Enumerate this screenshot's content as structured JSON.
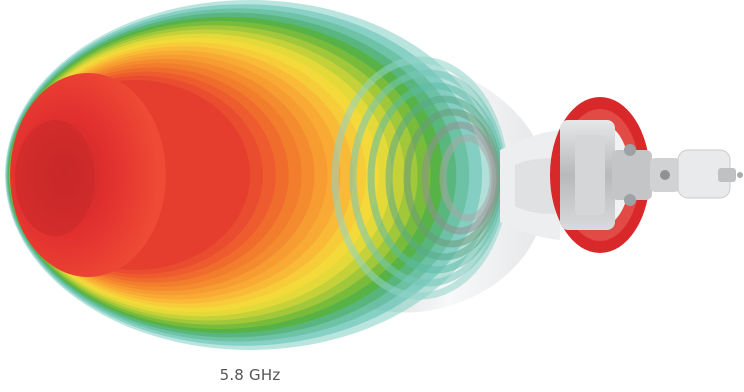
{
  "caption": "5.8 GHz",
  "colors": {
    "beam_core": "#e8302f",
    "beam_orange": "#f5932f",
    "beam_yellow": "#f7dd3a",
    "beam_green": "#3aaa3a",
    "beam_teal": "#5fbfb0",
    "dish_white": "#f2f3f4",
    "radome_red": "#d8282a",
    "metal": "#c9cbcd"
  }
}
